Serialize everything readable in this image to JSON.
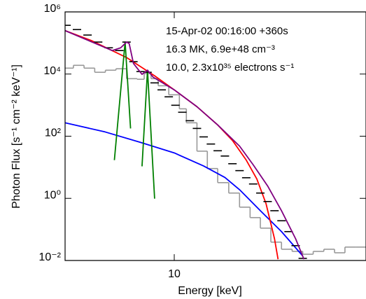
{
  "chart_data": {
    "type": "line",
    "x_label": "Energy [keV]",
    "y_label": "Photon Flux [s⁻¹ cm⁻² keV⁻¹]",
    "xscale": "log",
    "yscale": "log",
    "xlim": [
      4,
      50
    ],
    "ylim": [
      0.01,
      1000000
    ],
    "xticks": [
      10
    ],
    "yticks": [
      {
        "value": 0.01,
        "label": "10⁻²"
      },
      {
        "value": 1,
        "label": "10⁰"
      },
      {
        "value": 100,
        "label": "10²"
      },
      {
        "value": 10000,
        "label": "10⁴"
      },
      {
        "value": 1000000,
        "label": "10⁶"
      }
    ],
    "annotations": [
      {
        "text": "15-Apr-02 00:16:00 +360s",
        "color": "#000000"
      },
      {
        "text": "16.3 MK,  6.9e+48 cm⁻³",
        "color": "#ff0000"
      },
      {
        "text": "10.0, 2.3x10³⁵ electrons s⁻¹",
        "color": "#0000ff"
      }
    ],
    "series": [
      {
        "color": "#999999",
        "bins": [
          4.0,
          4.29,
          4.69,
          5.13,
          5.61,
          6.13,
          6.7,
          7.32,
          7.77,
          8.23,
          8.74,
          9.55,
          10.44,
          11.07,
          12.1,
          13.2,
          14.4,
          15.8,
          17.3,
          18.9,
          20.6,
          22.5,
          24.6,
          26.9,
          29.4,
          32.1,
          35.1,
          38.4,
          41.9,
          45.8,
          50
        ],
        "values": [
          15500,
          19100,
          15500,
          11400,
          13300,
          14800,
          7100,
          6800,
          10300,
          7100,
          4200,
          2150,
          760,
          270,
          33,
          9.1,
          3.2,
          1.48,
          0.52,
          0.24,
          0.11,
          0.039,
          0.023,
          0.0196,
          0.0159,
          0.0196,
          0.023,
          0.0177,
          0.027,
          0.027
        ]
      },
      {
        "color": "#0000ff",
        "x": [
          4.0,
          5.6,
          7.54,
          10,
          12.8,
          15.3,
          17.3,
          20.6,
          24.6,
          29.4
        ],
        "values": [
          270,
          137,
          63,
          29,
          11,
          4.7,
          1.9,
          0.4,
          0.085,
          0.014
        ]
      },
      {
        "color": "#ff0000",
        "x": [
          4.0,
          4.98,
          6.7,
          8.48,
          10,
          12.1,
          14.4,
          16.3,
          18.3,
          20.0,
          21.6,
          23.2,
          23.9
        ],
        "values": [
          250000,
          120000,
          34000,
          8800,
          3100,
          890,
          230,
          73,
          17,
          4.2,
          0.68,
          0.05,
          0.011
        ]
      },
      {
        "color": "#008000",
        "x": [
          6.05,
          6.62,
          6.93,
          null,
          7.63,
          7.99,
          8.48
        ],
        "values": [
          17,
          107000,
          178,
          null,
          10.7,
          13300,
          0.98
        ]
      },
      {
        "color": "#000000",
        "marker": "dash",
        "x": [
          4.05,
          4.42,
          4.83,
          5.28,
          5.77,
          6.31,
          6.7,
          7.1,
          7.54,
          7.99,
          8.48,
          9.0,
          9.55,
          10.1,
          10.7,
          11.4,
          12.1,
          12.8,
          13.6,
          14.4,
          15.3,
          16.3,
          17.3,
          18.3,
          19.4,
          20.6,
          21.9,
          23.2,
          24.6,
          26.1,
          27.7,
          29.4
        ],
        "values": [
          370000,
          270000,
          180000,
          107000,
          70000,
          57000,
          107000,
          25000,
          12000,
          11400,
          5200,
          3100,
          1850,
          990,
          590,
          315,
          178,
          95,
          56,
          34,
          23,
          13,
          7.8,
          4.6,
          2.9,
          1.48,
          0.79,
          0.4,
          0.19,
          0.085,
          0.03,
          0.0117
        ]
      },
      {
        "color": "#800080",
        "x": [
          4.0,
          5.94,
          6.38,
          6.7,
          6.85,
          7.1,
          7.63,
          7.99,
          8.38,
          10,
          12.1,
          14.4,
          17.3,
          19.4,
          21.9,
          24.6,
          27.7,
          29.7
        ],
        "values": [
          250000,
          57000,
          70000,
          107000,
          96000,
          22000,
          9800,
          13300,
          7900,
          3100,
          890,
          230,
          48,
          12,
          2.5,
          0.4,
          0.05,
          0.011
        ]
      }
    ]
  }
}
